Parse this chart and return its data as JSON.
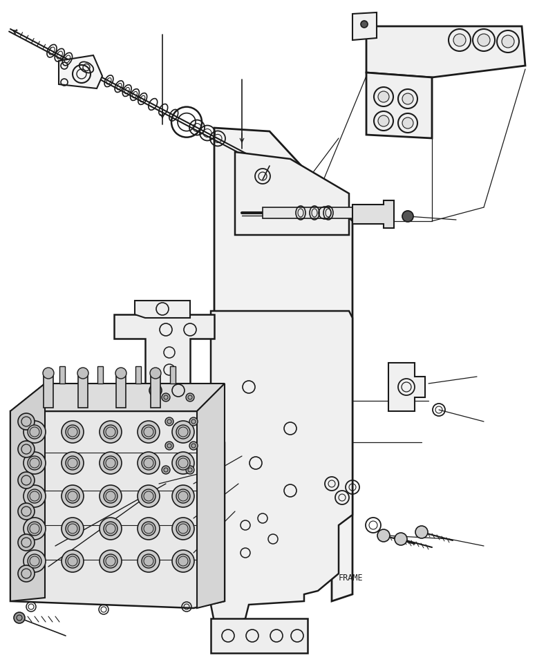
{
  "background_color": "#ffffff",
  "line_color": "#1a1a1a",
  "frame_label": "FRAME",
  "fig_width": 7.9,
  "fig_height": 9.58,
  "dpi": 100
}
